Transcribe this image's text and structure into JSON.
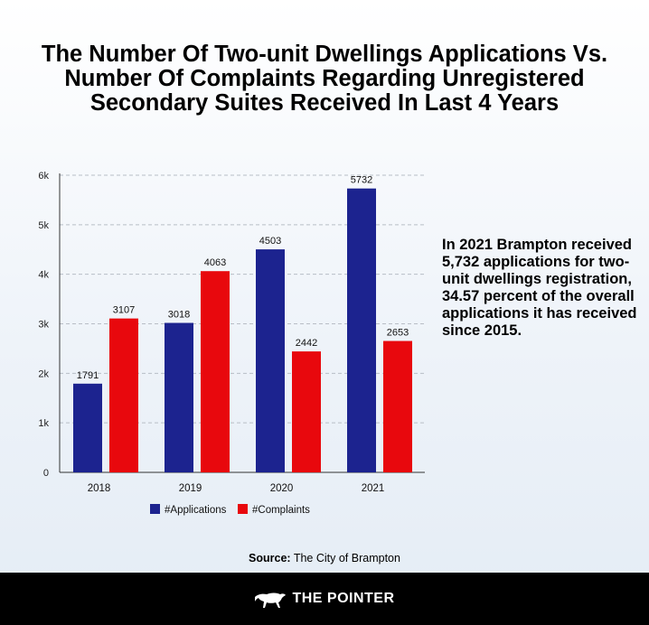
{
  "title_lines": [
    "The Number Of Two-unit Dwellings Applications Vs.",
    "Number Of Complaints Regarding Unregistered",
    "Secondary Suites Received In Last 4 Years"
  ],
  "note": "In 2021 Brampton received 5,732 applications for two-unit dwellings registration, 34.57 percent of the overall applications it has received since 2015.",
  "source": {
    "label": "Source:",
    "text": " The City of Brampton"
  },
  "footer": {
    "brand": "THE POINTER",
    "logo_icon": "panther-logo-icon"
  },
  "colors": {
    "applications": "#1c238f",
    "complaints": "#e8080d",
    "background": "#eef3f9",
    "footer": "#000000"
  },
  "chart_data": {
    "type": "bar",
    "categories": [
      "2018",
      "2019",
      "2020",
      "2021"
    ],
    "series": [
      {
        "name": "#Applications",
        "values": [
          1791,
          3018,
          4503,
          5732
        ],
        "color": "#1c238f"
      },
      {
        "name": "#Complaints",
        "values": [
          3107,
          4063,
          2442,
          2653
        ],
        "color": "#e8080d"
      }
    ],
    "data_labels": [
      [
        "1791",
        "3018",
        "4503",
        "5732"
      ],
      [
        "3107",
        "4063",
        "2442",
        "2653"
      ]
    ],
    "yticks": [
      0,
      1000,
      2000,
      3000,
      4000,
      5000,
      6000
    ],
    "ytick_labels": [
      "0",
      "1k",
      "2k",
      "3k",
      "4k",
      "5k",
      "6k"
    ],
    "ylim": [
      0,
      6000
    ],
    "grid": "horizontal-dashed",
    "legend_position": "bottom-center"
  }
}
